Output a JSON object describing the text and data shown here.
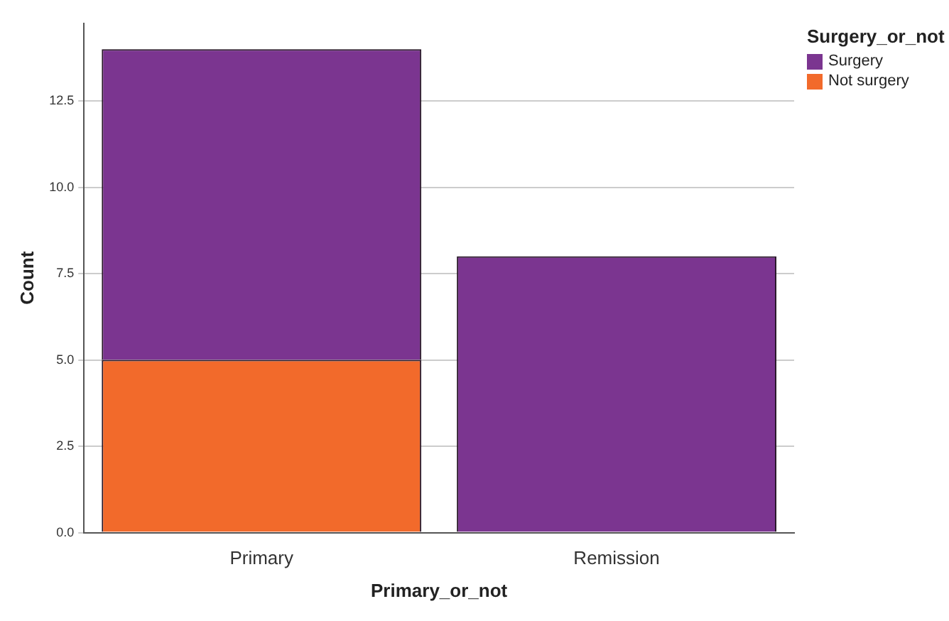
{
  "chart_data": {
    "type": "bar",
    "stacked": true,
    "xlabel": "Primary_or_not",
    "ylabel": "Count",
    "legend_title": "Surgery_or_not",
    "categories": [
      "Primary",
      "Remission"
    ],
    "series": [
      {
        "name": "Not surgery",
        "color": "#f26a2b",
        "values": [
          5,
          0
        ]
      },
      {
        "name": "Surgery",
        "color": "#7b3590",
        "values": [
          9,
          8
        ]
      }
    ],
    "ylim": [
      0,
      14.75
    ],
    "yticks": [
      {
        "value": 0,
        "label": "0.0"
      },
      {
        "value": 2.5,
        "label": "2.5"
      },
      {
        "value": 5,
        "label": "5.0"
      },
      {
        "value": 7.5,
        "label": "7.5"
      },
      {
        "value": 10,
        "label": "10.0"
      },
      {
        "value": 12.5,
        "label": "12.5"
      }
    ],
    "grid": "y",
    "legend": "top right"
  }
}
